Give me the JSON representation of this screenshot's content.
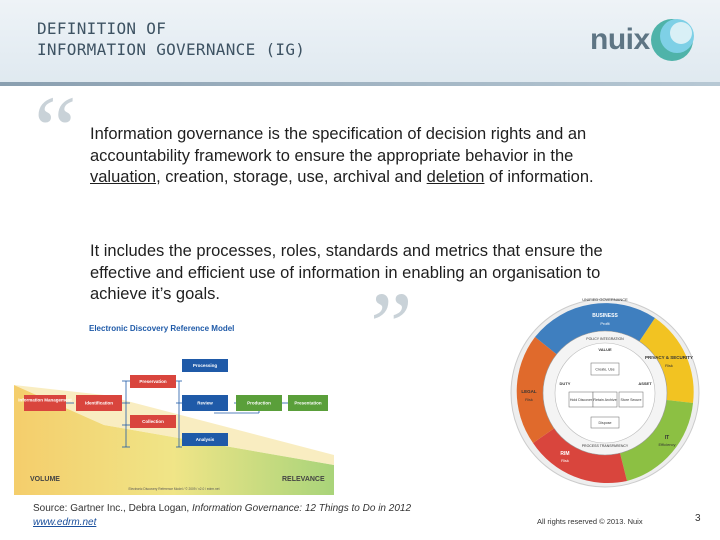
{
  "header": {
    "title": "DEFINITION OF\nINFORMATION GOVERNANCE (IG)",
    "logo_text": "nuix"
  },
  "quote": {
    "open": "“",
    "close": "”"
  },
  "paragraph1": {
    "part1": "Information governance is the specification of decision rights and an accountability framework to ensure the appropriate behavior in the ",
    "valuation": "valuation",
    "part2": ", creation, storage, use, archival and ",
    "deletion": "deletion",
    "part3": " of information."
  },
  "paragraph2": "It includes the processes, roles, standards and metrics that ensure the effective and efficient use of information in enabling an organisation to achieve it’s goals.",
  "edrm": {
    "title": "Electronic Discovery Reference Model",
    "nodes": {
      "info_mgmt": "Information Management",
      "identification": "Identification",
      "preservation": "Preservation",
      "collection": "Collection",
      "processing": "Processing",
      "review": "Review",
      "analysis": "Analysis",
      "production": "Production",
      "presentation": "Presentation"
    },
    "volume_label": "VOLUME",
    "relevance_label": "RELEVANCE",
    "footer": "Electronic Discovery Reference Model / © 2009 / v2.0 / edrm.net"
  },
  "wheel": {
    "unified_governance": "UNIFIED GOVERNANCE",
    "business": "BUSINESS",
    "business_sub": "Profit",
    "policy_integration": "POLICY INTEGRATION",
    "value": "VALUE",
    "create_use": "Create, Use",
    "privacy_security": "PRIVACY & SECURITY",
    "privacy_sub": "Risk",
    "duty": "DUTY",
    "asset": "ASSET",
    "legal": "LEGAL",
    "legal_sub": "Risk",
    "hold_discover": "Hold Discover",
    "retain_archive": "Retain Archive",
    "store_secure": "Store Secure",
    "dispose": "Dispose",
    "process_transparency": "PROCESS TRANSPARENCY",
    "it": "IT",
    "it_sub": "Efficiency",
    "rim": "RIM",
    "rim_sub": "Risk",
    "colors": {
      "business": "#3f7fbf",
      "privacy": "#f2c322",
      "it": "#8cc043",
      "rim": "#d9453d",
      "legal": "#e06a2c"
    }
  },
  "footer": {
    "source_prefix": "Source: Gartner Inc., Debra Logan, ",
    "source_title": "Information Governance: 12 Things to Do in 2012",
    "link": "www.edrm.net",
    "copyright": "All rights reserved © 2013. Nuix",
    "page": "3"
  }
}
